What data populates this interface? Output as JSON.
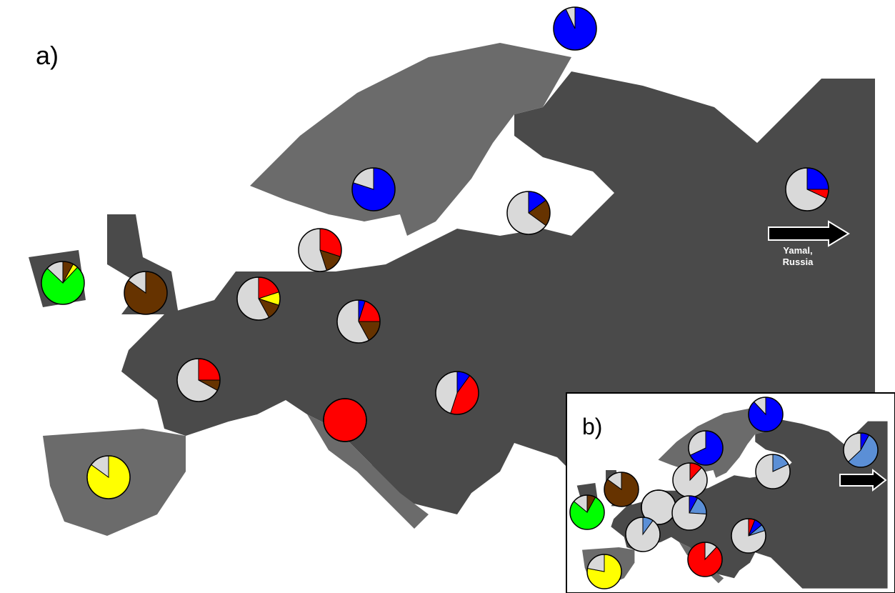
{
  "panels": [
    {
      "label": "a)",
      "note": "Yamal,\nRussia",
      "pies": [
        {
          "slices": [
            {
              "color": "#0000ff",
              "value": 93
            },
            {
              "color": "#d9d9d9",
              "value": 7
            }
          ]
        },
        {
          "slices": [
            {
              "color": "#0000ff",
              "value": 80
            },
            {
              "color": "#d9d9d9",
              "value": 20
            }
          ]
        },
        {
          "slices": [
            {
              "color": "#0000ff",
              "value": 15
            },
            {
              "color": "#663300",
              "value": 20
            },
            {
              "color": "#d9d9d9",
              "value": 65
            }
          ]
        },
        {
          "slices": [
            {
              "color": "#0000ff",
              "value": 25
            },
            {
              "color": "#ff0000",
              "value": 7
            },
            {
              "color": "#d9d9d9",
              "value": 68
            }
          ]
        },
        {
          "slices": [
            {
              "color": "#ff0000",
              "value": 30
            },
            {
              "color": "#663300",
              "value": 15
            },
            {
              "color": "#d9d9d9",
              "value": 55
            }
          ]
        },
        {
          "slices": [
            {
              "color": "#663300",
              "value": 8
            },
            {
              "color": "#ffff00",
              "value": 4
            },
            {
              "color": "#00ff00",
              "value": 75
            },
            {
              "color": "#d9d9d9",
              "value": 13
            }
          ]
        },
        {
          "slices": [
            {
              "color": "#663300",
              "value": 85
            },
            {
              "color": "#d9d9d9",
              "value": 15
            }
          ]
        },
        {
          "slices": [
            {
              "color": "#ff0000",
              "value": 20
            },
            {
              "color": "#ffff00",
              "value": 10
            },
            {
              "color": "#663300",
              "value": 12
            },
            {
              "color": "#d9d9d9",
              "value": 58
            }
          ]
        },
        {
          "slices": [
            {
              "color": "#0000ff",
              "value": 5
            },
            {
              "color": "#ff0000",
              "value": 20
            },
            {
              "color": "#663300",
              "value": 17
            },
            {
              "color": "#d9d9d9",
              "value": 58
            }
          ]
        },
        {
          "slices": [
            {
              "color": "#ff0000",
              "value": 25
            },
            {
              "color": "#663300",
              "value": 8
            },
            {
              "color": "#d9d9d9",
              "value": 67
            }
          ]
        },
        {
          "slices": [
            {
              "color": "#0000ff",
              "value": 10
            },
            {
              "color": "#ff0000",
              "value": 45
            },
            {
              "color": "#d9d9d9",
              "value": 45
            }
          ]
        },
        {
          "slices": [
            {
              "color": "#ff0000",
              "value": 100
            }
          ]
        },
        {
          "slices": [
            {
              "color": "#ffff00",
              "value": 85
            },
            {
              "color": "#d9d9d9",
              "value": 15
            }
          ]
        }
      ]
    },
    {
      "label": "b)",
      "pies": [
        {
          "slices": [
            {
              "color": "#0000ff",
              "value": 88
            },
            {
              "color": "#d9d9d9",
              "value": 12
            }
          ]
        },
        {
          "slices": [
            {
              "color": "#0000ff",
              "value": 68
            },
            {
              "color": "#d9d9d9",
              "value": 32
            }
          ]
        },
        {
          "slices": [
            {
              "color": "#0000ff",
              "value": 8
            },
            {
              "color": "#5b8fd6",
              "value": 55
            },
            {
              "color": "#d9d9d9",
              "value": 37
            }
          ]
        },
        {
          "slices": [
            {
              "color": "#5b8fd6",
              "value": 18
            },
            {
              "color": "#d9d9d9",
              "value": 82
            }
          ]
        },
        {
          "slices": [
            {
              "color": "#ff0000",
              "value": 12
            },
            {
              "color": "#d9d9d9",
              "value": 88
            }
          ]
        },
        {
          "slices": [
            {
              "color": "#663300",
              "value": 85
            },
            {
              "color": "#d9d9d9",
              "value": 15
            }
          ]
        },
        {
          "slices": [
            {
              "color": "#d9d9d9",
              "value": 100
            }
          ]
        },
        {
          "slices": [
            {
              "color": "#0000ff",
              "value": 8
            },
            {
              "color": "#5b8fd6",
              "value": 18
            },
            {
              "color": "#d9d9d9",
              "value": 74
            }
          ]
        },
        {
          "slices": [
            {
              "color": "#663300",
              "value": 8
            },
            {
              "color": "#00ff00",
              "value": 78
            },
            {
              "color": "#d9d9d9",
              "value": 14
            }
          ]
        },
        {
          "slices": [
            {
              "color": "#5b8fd6",
              "value": 10
            },
            {
              "color": "#d9d9d9",
              "value": 90
            }
          ]
        },
        {
          "slices": [
            {
              "color": "#ff0000",
              "value": 6
            },
            {
              "color": "#0000ff",
              "value": 8
            },
            {
              "color": "#5b8fd6",
              "value": 6
            },
            {
              "color": "#d9d9d9",
              "value": 80
            }
          ]
        },
        {
          "slices": [
            {
              "color": "#d9d9d9",
              "value": 12
            },
            {
              "color": "#ff0000",
              "value": 88
            }
          ]
        },
        {
          "slices": [
            {
              "color": "#ffff00",
              "value": 78
            },
            {
              "color": "#d9d9d9",
              "value": 22
            }
          ]
        }
      ]
    }
  ]
}
